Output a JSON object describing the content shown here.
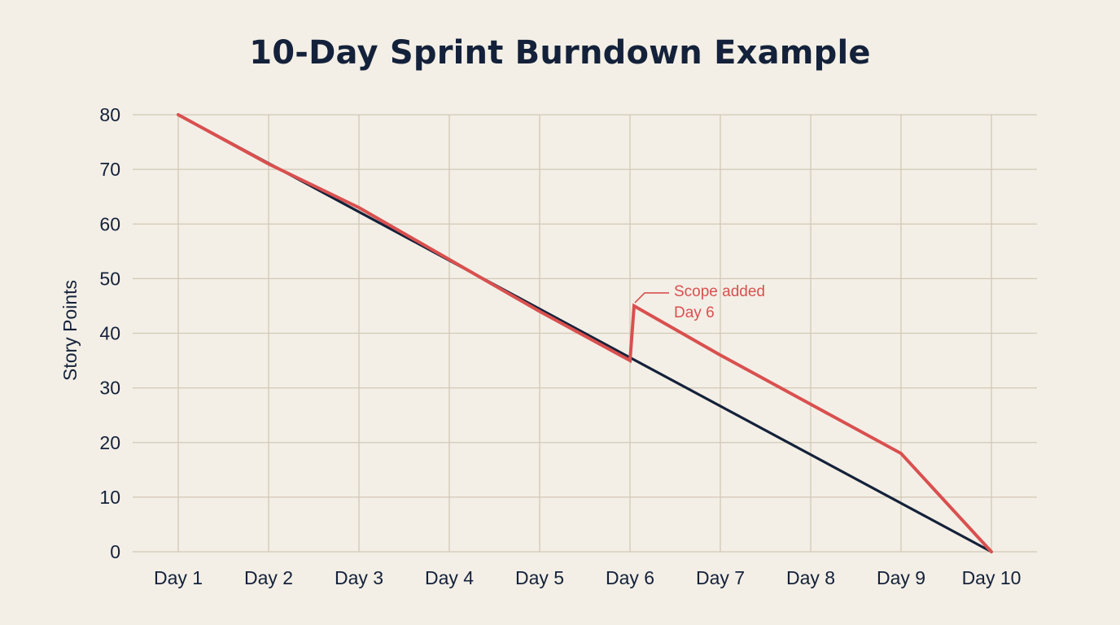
{
  "colors": {
    "background": "#f3efe6",
    "grid": "#d2c8b6",
    "ideal": "#14213a",
    "actual": "#d9504f",
    "text": "#14213a"
  },
  "chart_data": {
    "type": "line",
    "title": "10-Day Sprint Burndown Example",
    "xlabel": "",
    "ylabel": "Story Points",
    "categories": [
      "Day 1",
      "Day 2",
      "Day 3",
      "Day 4",
      "Day 5",
      "Day 6",
      "Day 7",
      "Day 8",
      "Day 9",
      "Day 10"
    ],
    "ylim": [
      0,
      80
    ],
    "yticks": [
      0,
      10,
      20,
      30,
      40,
      50,
      60,
      70,
      80
    ],
    "grid": true,
    "legend": "none",
    "series": [
      {
        "key": "ideal",
        "color": "#14213a",
        "points": [
          {
            "x": "Day 1",
            "y": 80
          },
          {
            "x": "Day 10",
            "y": 0
          }
        ]
      },
      {
        "key": "actual",
        "color": "#d9504f",
        "points": [
          {
            "x": "Day 1",
            "y": 80
          },
          {
            "x": "Day 2",
            "y": 71
          },
          {
            "x": "Day 3",
            "y": 63
          },
          {
            "x": "Day 4",
            "y": 53.5
          },
          {
            "x": "Day 5",
            "y": 44
          },
          {
            "x": "Day 6",
            "y": 35
          },
          {
            "x": "Day 6",
            "y": 45
          },
          {
            "x": "Day 7",
            "y": 36
          },
          {
            "x": "Day 8",
            "y": 27
          },
          {
            "x": "Day 9",
            "y": 18
          },
          {
            "x": "Day 10",
            "y": 0
          }
        ]
      }
    ],
    "annotations": [
      {
        "x": "Day 6",
        "y": 45,
        "lines": [
          "Scope added",
          "Day 6"
        ],
        "color": "#d9504f"
      }
    ]
  }
}
